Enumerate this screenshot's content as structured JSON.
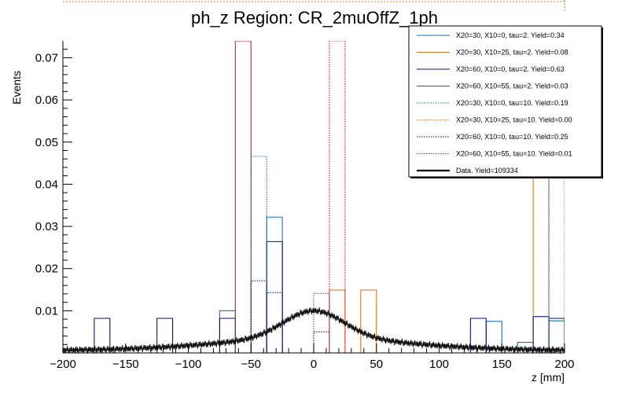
{
  "chart_data": {
    "type": "histogram",
    "title": "ph_z Region: CR_2muOffZ_1ph",
    "xlabel": "z [mm]",
    "ylabel": "Events",
    "xlim": [
      -200,
      200
    ],
    "ylim": [
      0,
      0.074
    ],
    "xticks": [
      -200,
      -150,
      -100,
      -50,
      0,
      50,
      100,
      150,
      200
    ],
    "xtick_labels": [
      "−200",
      "−150",
      "−100",
      "−50",
      "0",
      "50",
      "100",
      "150",
      "200"
    ],
    "yticks": [
      0.01,
      0.02,
      0.03,
      0.04,
      0.05,
      0.06,
      0.07
    ],
    "ytick_labels": [
      "0.01",
      "0.02",
      "0.03",
      "0.04",
      "0.05",
      "0.06",
      "0.07"
    ],
    "grid": false,
    "legend_position": "top-right",
    "series": [
      {
        "name": "X20=30, X10=0, tau=2. Yield=0.34",
        "color": "#1f6fb4",
        "style": "solid",
        "bins": [
          [
            -75,
            -62.5,
            0.01
          ],
          [
            -37.5,
            -25,
            0.0322
          ],
          [
            137.5,
            150,
            0.0075
          ],
          [
            162.5,
            175,
            0.0025
          ],
          [
            187.5,
            200,
            0.0076
          ]
        ]
      },
      {
        "name": "X20=30, X10=25, tau=2. Yield=0.08",
        "color": "#e07a2a",
        "style": "solid",
        "bins": [
          [
            12.5,
            25,
            0.0149
          ],
          [
            37.5,
            50,
            0.0149
          ],
          [
            175,
            187.5,
            0.07
          ]
        ]
      },
      {
        "name": "X20=60, X10=0, tau=2. Yield=0.63",
        "color": "#0a1670",
        "style": "solid",
        "bins": [
          [
            -175,
            -162.5,
            0.0082
          ],
          [
            -125,
            -112.5,
            0.0082
          ],
          [
            -75,
            -62.5,
            0.0082
          ],
          [
            -37.5,
            -25,
            0.0264
          ],
          [
            125,
            137.5,
            0.0082
          ],
          [
            175,
            187.5,
            0.0086
          ],
          [
            187.5,
            200,
            0.0082
          ]
        ]
      },
      {
        "name": "X20=60, X10=55, tau=2. Yield=0.03",
        "color": "#cc2020",
        "style": "solid",
        "bins": [
          [
            -62.5,
            -50,
            0.074
          ]
        ]
      },
      {
        "name": "X20=30, X10=0, tau=10. Yield=0.19",
        "color": "#1f6fb4",
        "style": "dotted",
        "bins": [
          [
            -50,
            -37.5,
            0.0466
          ],
          [
            0,
            12.5,
            0.0141
          ],
          [
            187.5,
            200,
            0.0437
          ]
        ]
      },
      {
        "name": "X20=30, X10=25, tau=10. Yield=0.00",
        "color": "#e07a2a",
        "style": "dotted",
        "bins": []
      },
      {
        "name": "X20=60, X10=0, tau=10. Yield=0.25",
        "color": "#0a1670",
        "style": "dotted",
        "bins": [
          [
            -50,
            -37.5,
            0.0171
          ],
          [
            -37.5,
            -25,
            0.0143
          ],
          [
            0,
            12.5,
            0.005
          ]
        ]
      },
      {
        "name": "X20=60, X10=55, tau=10. Yield=0.01",
        "color": "#cc2020",
        "style": "dotted",
        "bins": [
          [
            12.5,
            25,
            0.074
          ]
        ]
      }
    ],
    "data": {
      "name": "Data. Yield=109334",
      "color": "#000000",
      "model": {
        "baseline": 0.0006,
        "peak": 0.01,
        "center": 0,
        "width": 24,
        "tail": 0.0028,
        "tail_width": 75
      }
    }
  }
}
